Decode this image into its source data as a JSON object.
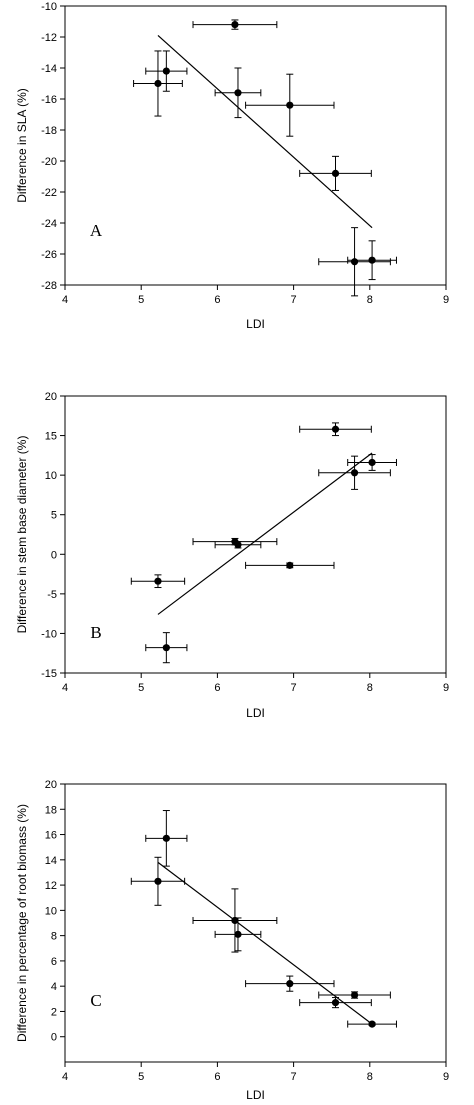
{
  "chart_data": [
    {
      "type": "scatter",
      "panel_label": "A",
      "xlabel": "LDI",
      "ylabel": "Difference in SLA (%)",
      "xlim": [
        4,
        9
      ],
      "ylim": [
        -28,
        -10
      ],
      "xticks": [
        4,
        5,
        6,
        7,
        8,
        9
      ],
      "yticks": [
        -28,
        -26,
        -24,
        -22,
        -20,
        -18,
        -16,
        -14,
        -12,
        -10
      ],
      "points": [
        {
          "x": 6.23,
          "y": -11.2,
          "xerr": 0.55,
          "yerr": 0.3
        },
        {
          "x": 5.33,
          "y": -14.2,
          "xerr": 0.27,
          "yerr": 1.3
        },
        {
          "x": 5.22,
          "y": -15.0,
          "xerr": 0.32,
          "yerr": 2.1
        },
        {
          "x": 6.27,
          "y": -15.6,
          "xerr": 0.3,
          "yerr": 1.6
        },
        {
          "x": 6.95,
          "y": -16.4,
          "xerr": 0.58,
          "yerr": 2.0
        },
        {
          "x": 7.55,
          "y": -20.8,
          "xerr": 0.47,
          "yerr": 1.1
        },
        {
          "x": 7.8,
          "y": -26.5,
          "xerr": 0.47,
          "yerr": 2.2
        },
        {
          "x": 8.03,
          "y": -26.4,
          "xerr": 0.32,
          "yerr": 1.25
        }
      ],
      "fit_line": {
        "x": [
          5.22,
          8.03
        ],
        "y": [
          -11.9,
          -24.3
        ]
      }
    },
    {
      "type": "scatter",
      "panel_label": "B",
      "xlabel": "LDI",
      "ylabel": "Difference in stem base diameter (%)",
      "xlim": [
        4,
        9
      ],
      "ylim": [
        -15,
        20
      ],
      "xticks": [
        4,
        5,
        6,
        7,
        8,
        9
      ],
      "yticks": [
        -15,
        -10,
        -5,
        0,
        5,
        10,
        15,
        20
      ],
      "points": [
        {
          "x": 7.55,
          "y": 15.8,
          "xerr": 0.47,
          "yerr": 0.8
        },
        {
          "x": 8.03,
          "y": 11.6,
          "xerr": 0.32,
          "yerr": 1.0
        },
        {
          "x": 7.8,
          "y": 10.3,
          "xerr": 0.47,
          "yerr": 2.1
        },
        {
          "x": 6.23,
          "y": 1.6,
          "xerr": 0.55,
          "yerr": 0.4
        },
        {
          "x": 6.27,
          "y": 1.2,
          "xerr": 0.3,
          "yerr": 0.4
        },
        {
          "x": 6.95,
          "y": -1.4,
          "xerr": 0.58,
          "yerr": 0.3
        },
        {
          "x": 5.22,
          "y": -3.4,
          "xerr": 0.35,
          "yerr": 0.8
        },
        {
          "x": 5.33,
          "y": -11.8,
          "xerr": 0.27,
          "yerr": 1.9
        }
      ],
      "fit_line": {
        "x": [
          5.22,
          8.03
        ],
        "y": [
          -7.6,
          12.8
        ]
      }
    },
    {
      "type": "scatter",
      "panel_label": "C",
      "xlabel": "LDI",
      "ylabel": "Difference in percentage of root biomass (%)",
      "xlim": [
        4,
        9
      ],
      "ylim": [
        -2,
        20
      ],
      "xticks": [
        4,
        5,
        6,
        7,
        8,
        9
      ],
      "yticks": [
        0,
        2,
        4,
        6,
        8,
        10,
        12,
        14,
        16,
        18,
        20
      ],
      "points": [
        {
          "x": 5.33,
          "y": 15.7,
          "xerr": 0.27,
          "yerr": 2.2
        },
        {
          "x": 5.22,
          "y": 12.3,
          "xerr": 0.35,
          "yerr": 1.9
        },
        {
          "x": 6.23,
          "y": 9.2,
          "xerr": 0.55,
          "yerr": 2.5
        },
        {
          "x": 6.27,
          "y": 8.1,
          "xerr": 0.3,
          "yerr": 1.3
        },
        {
          "x": 6.95,
          "y": 4.2,
          "xerr": 0.58,
          "yerr": 0.6
        },
        {
          "x": 7.8,
          "y": 3.3,
          "xerr": 0.47,
          "yerr": 0.25
        },
        {
          "x": 7.55,
          "y": 2.7,
          "xerr": 0.47,
          "yerr": 0.4
        },
        {
          "x": 8.03,
          "y": 1.0,
          "xerr": 0.32,
          "yerr": 0.1
        }
      ],
      "fit_line": {
        "x": [
          5.22,
          8.03
        ],
        "y": [
          13.8,
          1.0
        ]
      }
    }
  ]
}
